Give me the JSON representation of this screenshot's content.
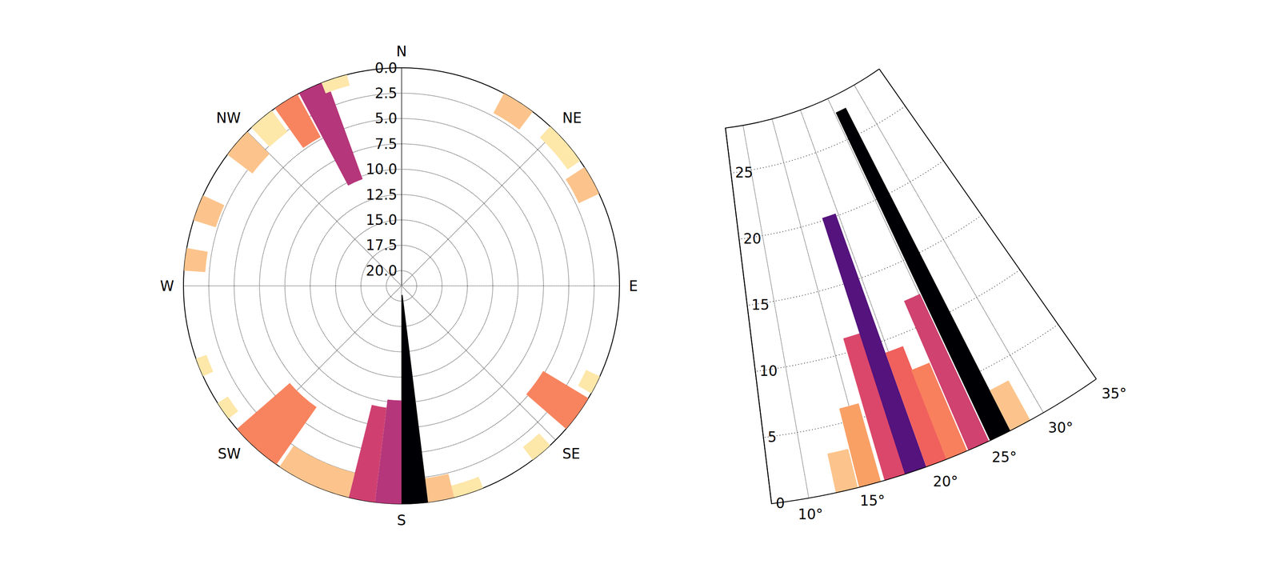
{
  "chart_data": [
    {
      "type": "polar_bar",
      "theta": [
        32.5,
        49,
        61,
        117,
        126,
        140,
        162,
        169.5,
        176.5,
        183.5,
        190.5,
        204,
        222,
        235,
        248,
        277,
        291,
        311,
        320,
        328,
        336,
        342
      ],
      "widths": [
        9,
        12,
        8,
        5,
        10,
        6,
        8,
        7,
        7,
        7,
        7,
        20,
        14,
        5,
        5,
        6,
        7,
        8,
        7,
        7,
        8,
        7
      ],
      "values": [
        2.2,
        1.5,
        2.2,
        1.5,
        5.2,
        1.6,
        1.2,
        2.4,
        20.6,
        10.2,
        9.4,
        2.5,
        6.9,
        1.2,
        1.1,
        2.1,
        2.3,
        3.1,
        2.6,
        4.8,
        10.3,
        1.1
      ],
      "colors": [
        "#fcc48c",
        "#fde7a9",
        "#fcc48c",
        "#fde7a9",
        "#f8845f",
        "#fde7a9",
        "#fde7a9",
        "#fcc48c",
        "#000004",
        "#b5367a",
        "#cf4070",
        "#fcc48c",
        "#f8845f",
        "#fde7a9",
        "#fde7a9",
        "#fcc48c",
        "#fcc48c",
        "#fcc48c",
        "#fde7a9",
        "#f8845f",
        "#b5367a",
        "#fde7a9"
      ],
      "thetalim": [
        0,
        360
      ],
      "thetaticks": [
        {
          "value": 0,
          "label": "N"
        },
        {
          "value": 45,
          "label": "NE"
        },
        {
          "value": 90,
          "label": "E"
        },
        {
          "value": 135,
          "label": "SE"
        },
        {
          "value": 180,
          "label": "S"
        },
        {
          "value": 225,
          "label": "SW"
        },
        {
          "value": 270,
          "label": "W"
        },
        {
          "value": 315,
          "label": "NW"
        }
      ],
      "rlim": [
        0,
        21.5
      ],
      "rticks": [
        {
          "value": 0,
          "label": "0.0"
        },
        2.5,
        {
          "value": 5,
          "label": "5.0"
        },
        7.5,
        {
          "value": 10,
          "label": "10.0"
        },
        12.5,
        {
          "value": 15,
          "label": "15.0"
        },
        17.5,
        {
          "value": 20,
          "label": "20.0"
        }
      ],
      "grid": true
    },
    {
      "type": "polar_bar",
      "theta": [
        13.1,
        15.0,
        17.1,
        18.8,
        20.6,
        22.3,
        24.2,
        26.1,
        27.9
      ],
      "widths": [
        1.8,
        1.8,
        1.8,
        1.8,
        1.8,
        1.8,
        1.8,
        1.8,
        1.8
      ],
      "values": [
        3.0,
        6.1,
        11.1,
        20.2,
        9.1,
        7.2,
        12.2,
        27.2,
        3.4
      ],
      "colors": [
        "#fcc48c",
        "#f9a065",
        "#db476a",
        "#54137d",
        "#f0605d",
        "#f8805d",
        "#d0426f",
        "#000004",
        "#fcc48c"
      ],
      "thetalim": [
        7,
        35
      ],
      "thetaticks": [
        {
          "value": 10,
          "label": "10°"
        },
        {
          "value": 15,
          "label": "15°"
        },
        {
          "value": 20,
          "label": "20°"
        },
        {
          "value": 25,
          "label": "25°"
        },
        {
          "value": 30,
          "label": "30°"
        },
        {
          "value": 35,
          "label": "35°"
        }
      ],
      "rlim": [
        0,
        28.4
      ],
      "rticks": [
        0,
        5,
        10,
        15,
        20,
        25
      ],
      "grid": true
    }
  ]
}
